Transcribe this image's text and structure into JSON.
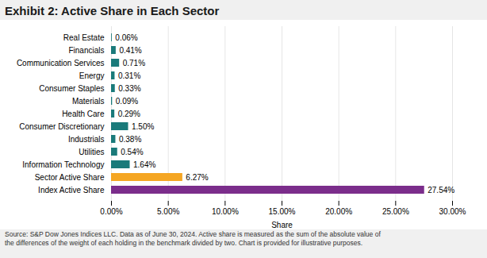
{
  "chart_data": {
    "type": "bar",
    "orientation": "horizontal",
    "title": "Exhibit 2: Active Share in Each Sector",
    "caption": "Source: S&P Dow Jones Indices LLC. Data as of June 30, 2024. Active share is measured as the sum of the absolute value of\nthe differences of the weight of each holding in the benchmark divided by two. Chart is provided for illustrative purposes.",
    "categories": [
      "Index Active Share",
      "Sector Active Share",
      "Information Technology",
      "Utilities",
      "Industrials",
      "Consumer Discretionary",
      "Health Care",
      "Materials",
      "Consumer Staples",
      "Energy",
      "Communication Services",
      "Financials",
      "Real Estate"
    ],
    "values": [
      0.2754,
      0.0627,
      0.0164,
      0.0054,
      0.0038,
      0.015,
      0.0029,
      0.0009,
      0.0033,
      0.0031,
      0.0071,
      0.0041,
      0.0006
    ],
    "value_labels": [
      "27.54%",
      "6.27%",
      "1.64%",
      "0.54%",
      "0.38%",
      "1.50%",
      "0.29%",
      "0.09%",
      "0.33%",
      "0.31%",
      "0.71%",
      "0.41%",
      "0.06%"
    ],
    "colors": [
      "#7b2d8b",
      "#f5a623",
      "#1a7a7a",
      "#1a7a7a",
      "#1a7a7a",
      "#1a7a7a",
      "#1a7a7a",
      "#1a7a7a",
      "#1a7a7a",
      "#1a7a7a",
      "#1a7a7a",
      "#1a7a7a",
      "#1a7a7a"
    ],
    "xlabel": "Share",
    "xlim": [
      0,
      0.3
    ],
    "xticks": [
      {
        "value": 0.0,
        "label": "0.00%"
      },
      {
        "value": 0.05,
        "label": "5.00%"
      },
      {
        "value": 0.1,
        "label": "10.00%"
      },
      {
        "value": 0.15,
        "label": "15.00%"
      },
      {
        "value": 0.2,
        "label": "20.00%"
      },
      {
        "value": 0.25,
        "label": "25.00%"
      },
      {
        "value": 0.3,
        "label": "30.00%"
      }
    ],
    "grid": true,
    "data_labels": true
  }
}
